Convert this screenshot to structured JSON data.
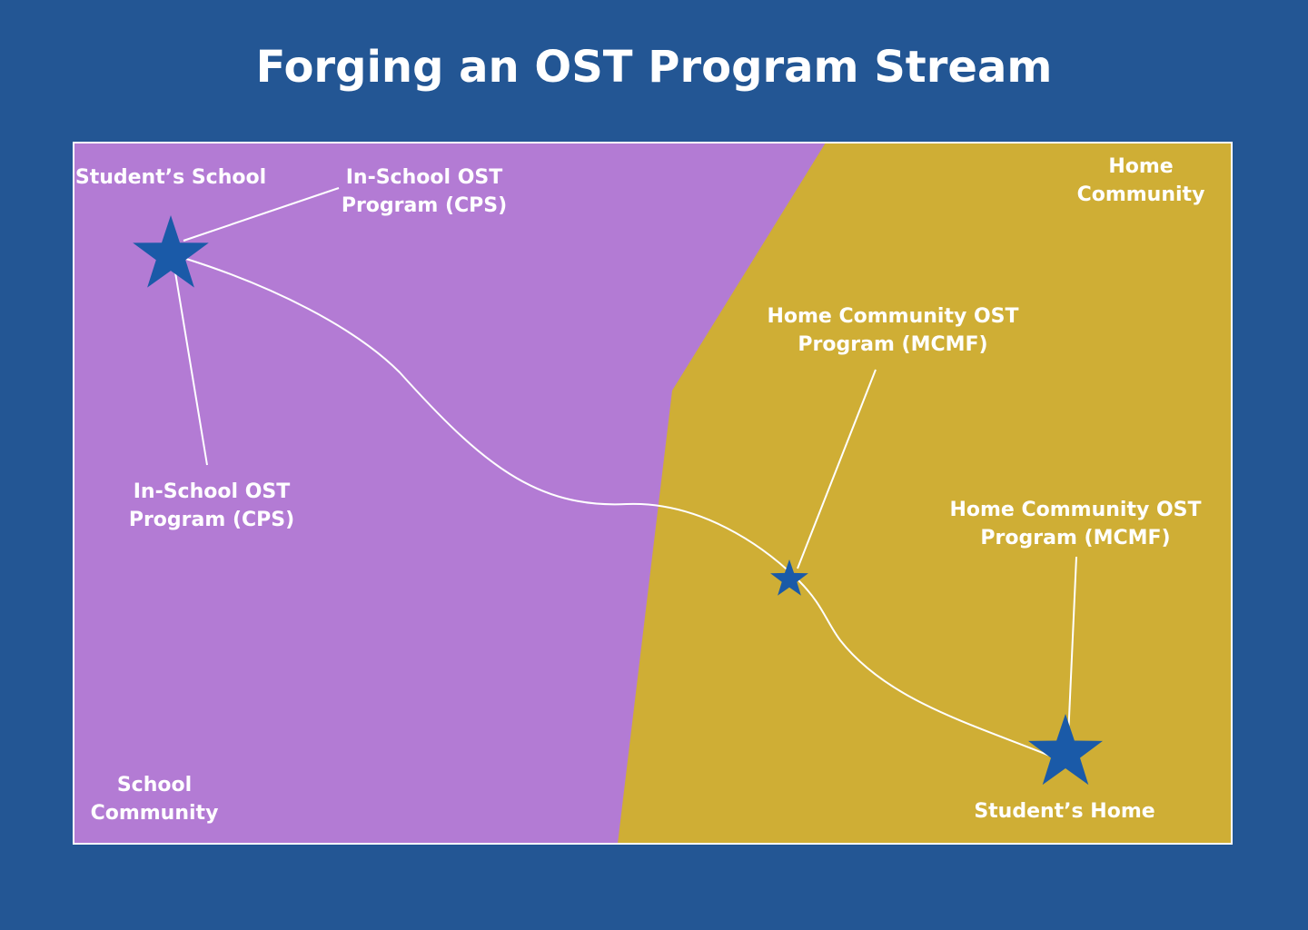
{
  "title": "Forging an OST Program Stream",
  "colors": {
    "background": "#235694",
    "school_region": "#b37bd4",
    "home_region": "#cfae35",
    "star": "#1a5aa8",
    "text": "#ffffff"
  },
  "regions": {
    "school": {
      "label_line1": "School",
      "label_line2": "Community"
    },
    "home": {
      "label_line1": "Home",
      "label_line2": "Community"
    }
  },
  "nodes": {
    "students_school": {
      "label": "Student’s School",
      "icon": "star-icon"
    },
    "students_home": {
      "label": "Student’s Home",
      "icon": "star-icon"
    },
    "midpoint": {
      "icon": "star-icon"
    }
  },
  "callouts": {
    "in_school_top": {
      "line1": "In-School OST",
      "line2": "Program (CPS)"
    },
    "in_school_bottom": {
      "line1": "In-School OST",
      "line2": "Program (CPS)"
    },
    "home_mid": {
      "line1": "Home Community OST",
      "line2": "Program (MCMF)"
    },
    "home_right": {
      "line1": "Home Community OST",
      "line2": "Program (MCMF)"
    }
  }
}
